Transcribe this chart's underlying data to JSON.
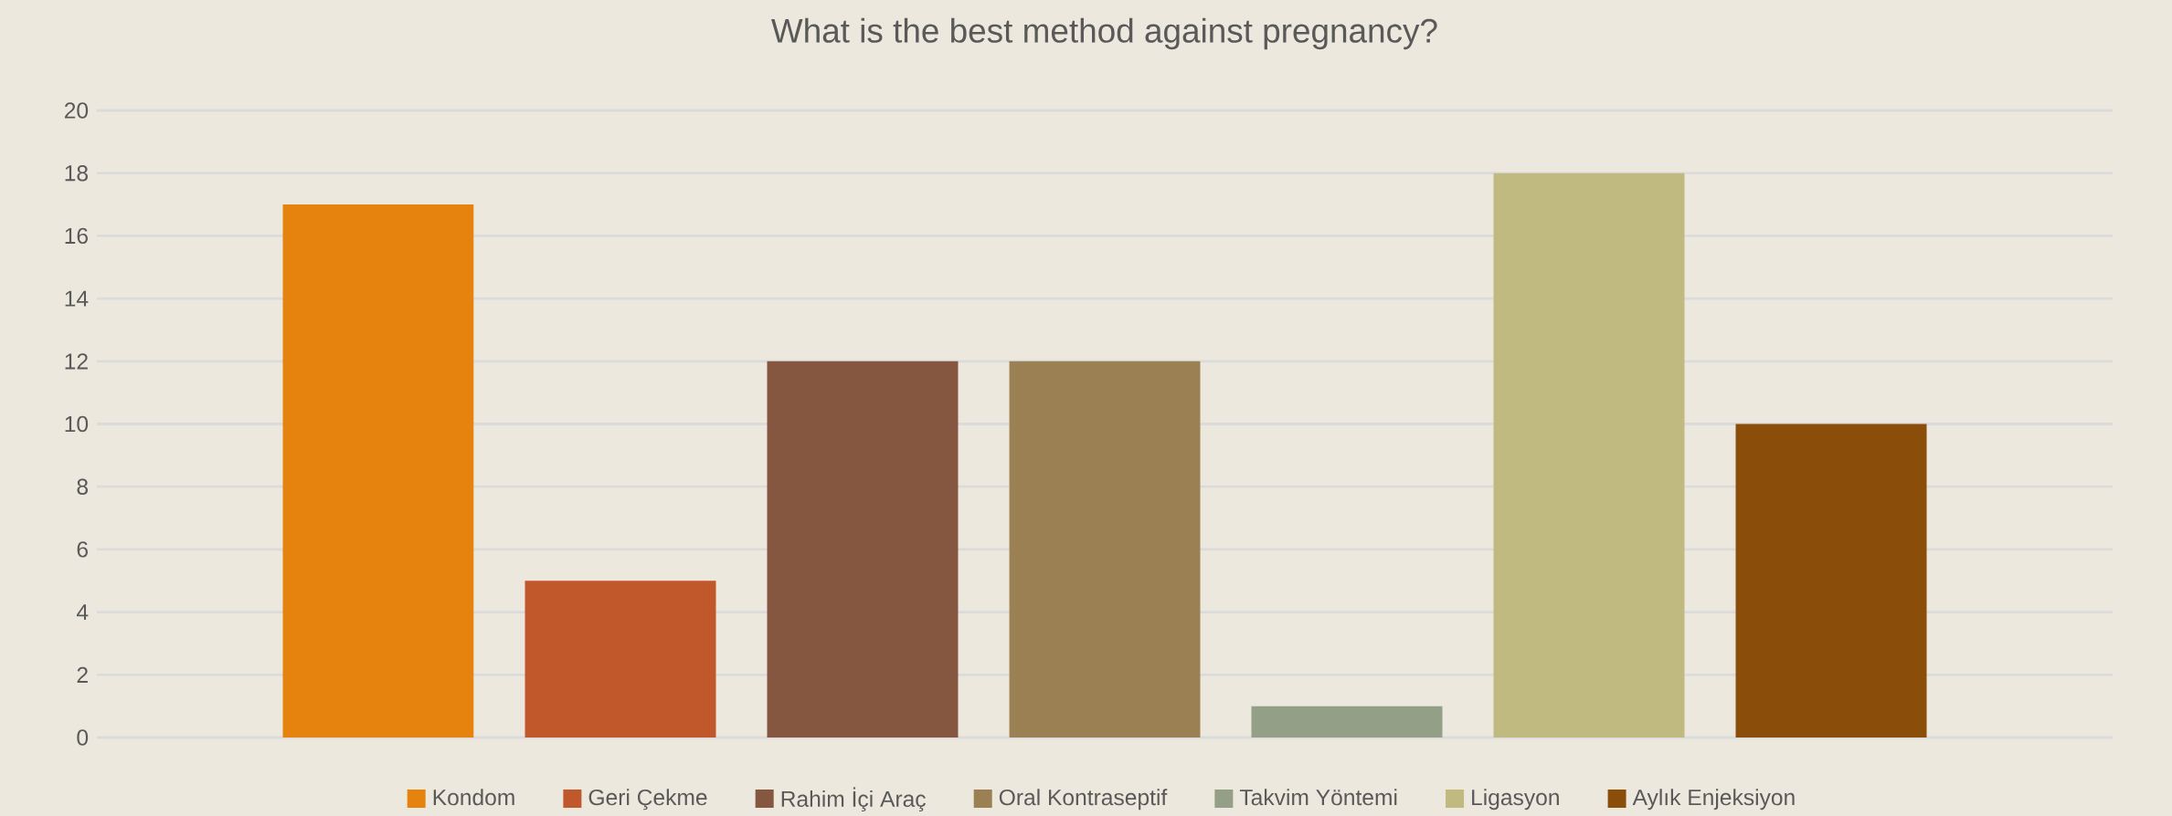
{
  "chart_data": {
    "type": "bar",
    "title": "What is the best method against pregnancy?",
    "categories": [
      null
    ],
    "series": [
      {
        "name": "Kondom",
        "color": "#e6830f",
        "values": [
          17
        ]
      },
      {
        "name": "Geri Çekme",
        "color": "#c0582b",
        "values": [
          5
        ]
      },
      {
        "name": "Rahim İçi Araç",
        "color": "#855640",
        "values": [
          12
        ]
      },
      {
        "name": "Oral Kontraseptif",
        "color": "#9a8052",
        "values": [
          12
        ]
      },
      {
        "name": "Takvim Yöntemi",
        "color": "#939f86",
        "values": [
          1
        ]
      },
      {
        "name": "Ligasyon",
        "color": "#c1ba80",
        "values": [
          18
        ]
      },
      {
        "name": "Aylık Enjeksiyon",
        "color": "#8a4e0a",
        "values": [
          10
        ]
      }
    ],
    "ylim": [
      0,
      20
    ],
    "yticks": [
      0,
      2,
      4,
      6,
      8,
      10,
      12,
      14,
      16,
      18,
      20
    ],
    "grid": "y",
    "legend": "bottom"
  }
}
